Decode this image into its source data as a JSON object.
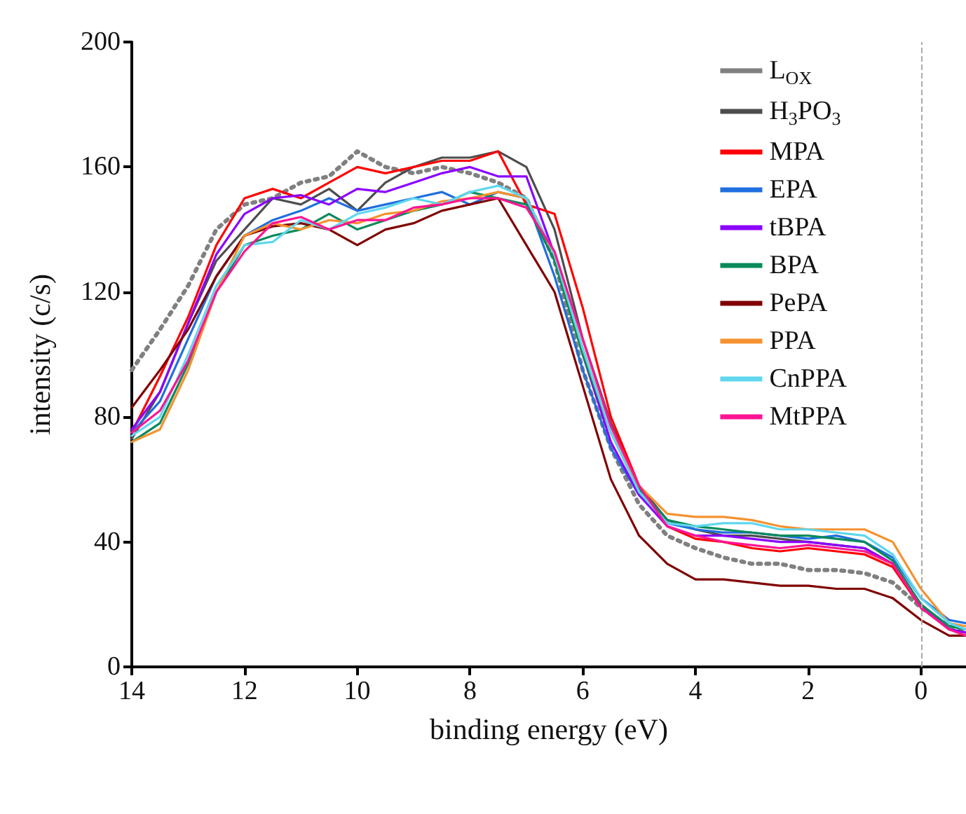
{
  "chart_data": {
    "type": "line",
    "xlabel": "binding energy (eV)",
    "ylabel": "intensity (c/s)",
    "x": [
      14,
      13.5,
      13,
      12.5,
      12,
      11.5,
      11,
      10.5,
      10,
      9.5,
      9,
      8.5,
      8,
      7.5,
      7,
      6.5,
      6,
      5.5,
      5,
      4.5,
      4,
      3.5,
      3,
      2.5,
      2,
      1.5,
      1,
      0.5,
      0,
      -0.5,
      -0.8
    ],
    "xlim": [
      14,
      -0.8
    ],
    "xticks": [
      14,
      12,
      10,
      8,
      6,
      4,
      2,
      0
    ],
    "ylim": [
      0,
      200
    ],
    "yticks": [
      0,
      40,
      80,
      120,
      160,
      200
    ],
    "grid": false,
    "legend": "top right",
    "marker": "none",
    "ref_lines": [
      {
        "axis": "x",
        "value": 0,
        "color": "#aaaaaa",
        "line_style": "dashed"
      }
    ],
    "series": [
      {
        "name": "L$_{OX}$",
        "color": "#808080",
        "line_style": "dotted",
        "values": [
          95,
          108,
          122,
          140,
          148,
          150,
          155,
          157,
          165,
          160,
          158,
          160,
          158,
          155,
          150,
          130,
          95,
          70,
          52,
          42,
          38,
          35,
          33,
          33,
          31,
          31,
          30,
          27,
          19,
          13,
          12
        ]
      },
      {
        "name": "H$_{3}$PO$_{3}$",
        "color": "#4d4d4d",
        "line_style": "solid",
        "values": [
          73,
          88,
          110,
          130,
          140,
          150,
          148,
          153,
          146,
          155,
          160,
          163,
          163,
          165,
          160,
          140,
          105,
          78,
          58,
          47,
          44,
          42,
          42,
          41,
          40,
          39,
          38,
          33,
          20,
          12,
          11
        ]
      },
      {
        "name": "MPA",
        "color": "#ff0000",
        "line_style": "solid",
        "values": [
          75,
          93,
          112,
          135,
          150,
          153,
          150,
          155,
          160,
          158,
          160,
          162,
          162,
          165,
          148,
          145,
          115,
          80,
          58,
          45,
          41,
          40,
          38,
          37,
          38,
          37,
          36,
          32,
          19,
          12,
          11
        ]
      },
      {
        "name": "EPA",
        "color": "#1f6fdf",
        "line_style": "solid",
        "values": [
          75,
          85,
          105,
          125,
          138,
          143,
          146,
          150,
          146,
          148,
          150,
          152,
          148,
          152,
          150,
          125,
          95,
          70,
          55,
          46,
          44,
          43,
          43,
          42,
          41,
          42,
          40,
          35,
          22,
          15,
          14
        ]
      },
      {
        "name": "tBPA",
        "color": "#8b00ff",
        "line_style": "solid",
        "values": [
          76,
          88,
          110,
          132,
          145,
          150,
          151,
          148,
          153,
          152,
          155,
          158,
          160,
          157,
          157,
          132,
          100,
          72,
          55,
          45,
          42,
          42,
          41,
          40,
          40,
          39,
          38,
          33,
          20,
          12,
          11
        ]
      },
      {
        "name": "BPA",
        "color": "#0a8a5a",
        "line_style": "solid",
        "values": [
          72,
          78,
          97,
          120,
          135,
          138,
          140,
          145,
          140,
          143,
          146,
          148,
          152,
          150,
          148,
          130,
          100,
          75,
          57,
          47,
          45,
          44,
          43,
          42,
          42,
          41,
          40,
          34,
          20,
          13,
          12
        ]
      },
      {
        "name": "PePA",
        "color": "#800000",
        "line_style": "solid",
        "values": [
          83,
          95,
          108,
          125,
          138,
          141,
          142,
          140,
          135,
          140,
          142,
          146,
          148,
          150,
          135,
          120,
          90,
          60,
          42,
          33,
          28,
          28,
          27,
          26,
          26,
          25,
          25,
          22,
          15,
          10,
          10
        ]
      },
      {
        "name": "PPA",
        "color": "#f5922f",
        "line_style": "solid",
        "values": [
          72,
          76,
          95,
          120,
          138,
          142,
          140,
          143,
          142,
          145,
          146,
          149,
          150,
          152,
          150,
          132,
          102,
          75,
          58,
          49,
          48,
          48,
          47,
          45,
          44,
          44,
          44,
          40,
          25,
          14,
          13
        ]
      },
      {
        "name": "CnPPA",
        "color": "#5fd7ee",
        "line_style": "solid",
        "values": [
          74,
          80,
          100,
          122,
          135,
          136,
          143,
          140,
          145,
          147,
          150,
          148,
          152,
          154,
          150,
          132,
          102,
          75,
          56,
          46,
          45,
          46,
          46,
          44,
          44,
          43,
          42,
          36,
          22,
          14,
          12
        ]
      },
      {
        "name": "MtPPA",
        "color": "#ff1493",
        "line_style": "solid",
        "values": [
          75,
          82,
          98,
          120,
          133,
          142,
          144,
          140,
          143,
          143,
          147,
          148,
          150,
          150,
          147,
          133,
          105,
          77,
          58,
          45,
          42,
          40,
          39,
          38,
          39,
          38,
          37,
          33,
          19,
          12,
          10
        ]
      }
    ]
  }
}
